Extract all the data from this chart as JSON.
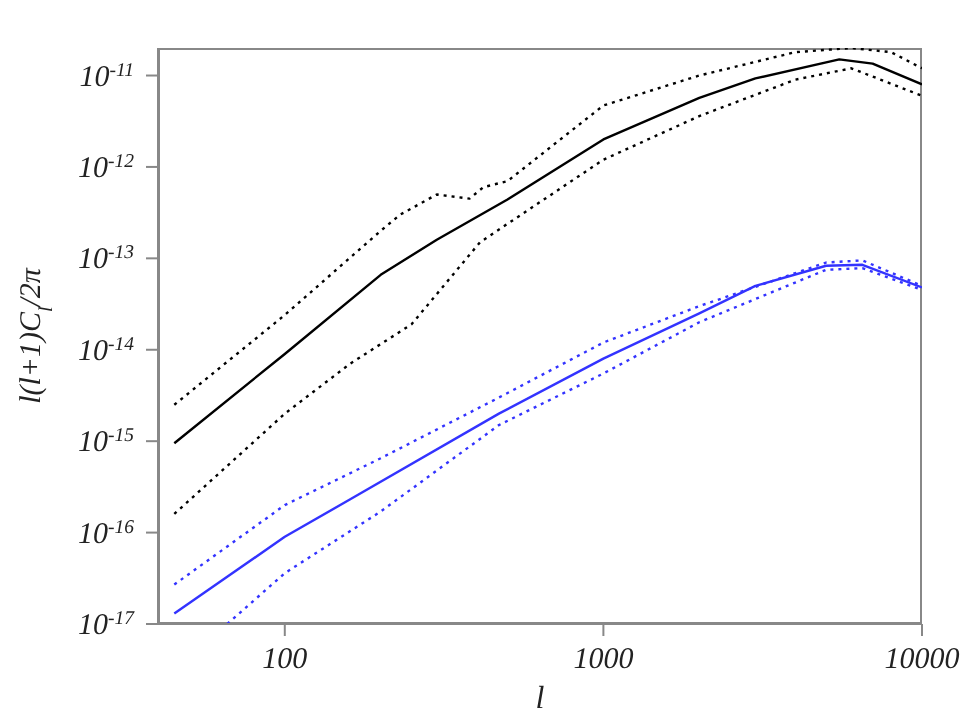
{
  "chart_data": {
    "type": "line",
    "xlabel": "l",
    "ylabel": "l(l+1)C$_{l}$/2π",
    "log": "xy",
    "grid": false,
    "legend": false,
    "marker": "none",
    "xlim": [
      40,
      10000
    ],
    "ylim": [
      1e-17,
      2e-11
    ],
    "xticks": [
      100,
      1000,
      10000
    ],
    "yticks": [
      {
        "value": 1e-17,
        "label": "10$^{-17}$"
      },
      {
        "value": 1e-16,
        "label": "10$^{-16}$"
      },
      {
        "value": 1e-15,
        "label": "10$^{-15}$"
      },
      {
        "value": 1e-14,
        "label": "10$^{-14}$"
      },
      {
        "value": 1e-13,
        "label": "10$^{-13}$"
      },
      {
        "value": 1e-12,
        "label": "10$^{-12}$"
      },
      {
        "value": 1e-11,
        "label": "10$^{-11}$"
      }
    ],
    "series": [
      {
        "color": "#000000",
        "line_style": "solid",
        "x": [
          45,
          100,
          200,
          300,
          500,
          1000,
          2000,
          3000,
          5500,
          7000,
          10000
        ],
        "values": [
          9.5e-16,
          9e-15,
          6.6e-14,
          1.6e-13,
          4.4e-13,
          2e-12,
          5.7e-12,
          9.3e-12,
          1.5e-11,
          1.35e-11,
          8e-12
        ]
      },
      {
        "color": "#000000",
        "line_style": "dotted",
        "x": [
          45,
          100,
          200,
          230,
          300,
          380,
          420,
          500,
          1000,
          2000,
          4000,
          6000,
          8000,
          10000
        ],
        "values": [
          2.5e-15,
          2.4e-14,
          2e-13,
          3e-13,
          5e-13,
          4.5e-13,
          6e-13,
          7e-13,
          4.7e-12,
          1e-11,
          1.8e-11,
          2e-11,
          1.8e-11,
          1.2e-11
        ]
      },
      {
        "color": "#000000",
        "line_style": "dotted",
        "x": [
          45,
          100,
          160,
          250,
          410,
          1000,
          2000,
          4000,
          6000,
          10000
        ],
        "values": [
          1.6e-16,
          2e-15,
          7e-15,
          1.9e-14,
          1.5e-13,
          1.2e-12,
          3.6e-12,
          9e-12,
          1.2e-11,
          6e-12
        ]
      },
      {
        "color": "#3333ff",
        "line_style": "solid",
        "x": [
          45,
          100,
          160,
          470,
          1000,
          2000,
          3000,
          5000,
          6500,
          10000
        ],
        "values": [
          1.3e-17,
          9e-17,
          2.3e-16,
          2e-15,
          8e-15,
          2.5e-14,
          5e-14,
          8.3e-14,
          8.5e-14,
          4.8e-14
        ]
      },
      {
        "color": "#3333ff",
        "line_style": "dotted",
        "x": [
          45,
          100,
          200,
          470,
          1000,
          2000,
          5000,
          6500,
          10000
        ],
        "values": [
          2.7e-17,
          2e-16,
          6.5e-16,
          3e-15,
          1.2e-14,
          3e-14,
          9e-14,
          9.5e-14,
          5e-14
        ]
      },
      {
        "color": "#3333ff",
        "line_style": "dotted",
        "x": [
          66,
          100,
          200,
          470,
          1000,
          2000,
          5000,
          6500,
          10000
        ],
        "values": [
          1e-17,
          3.6e-17,
          1.7e-16,
          1.5e-15,
          5.5e-15,
          2e-14,
          7.5e-14,
          7.8e-14,
          4.5e-14
        ]
      }
    ]
  }
}
